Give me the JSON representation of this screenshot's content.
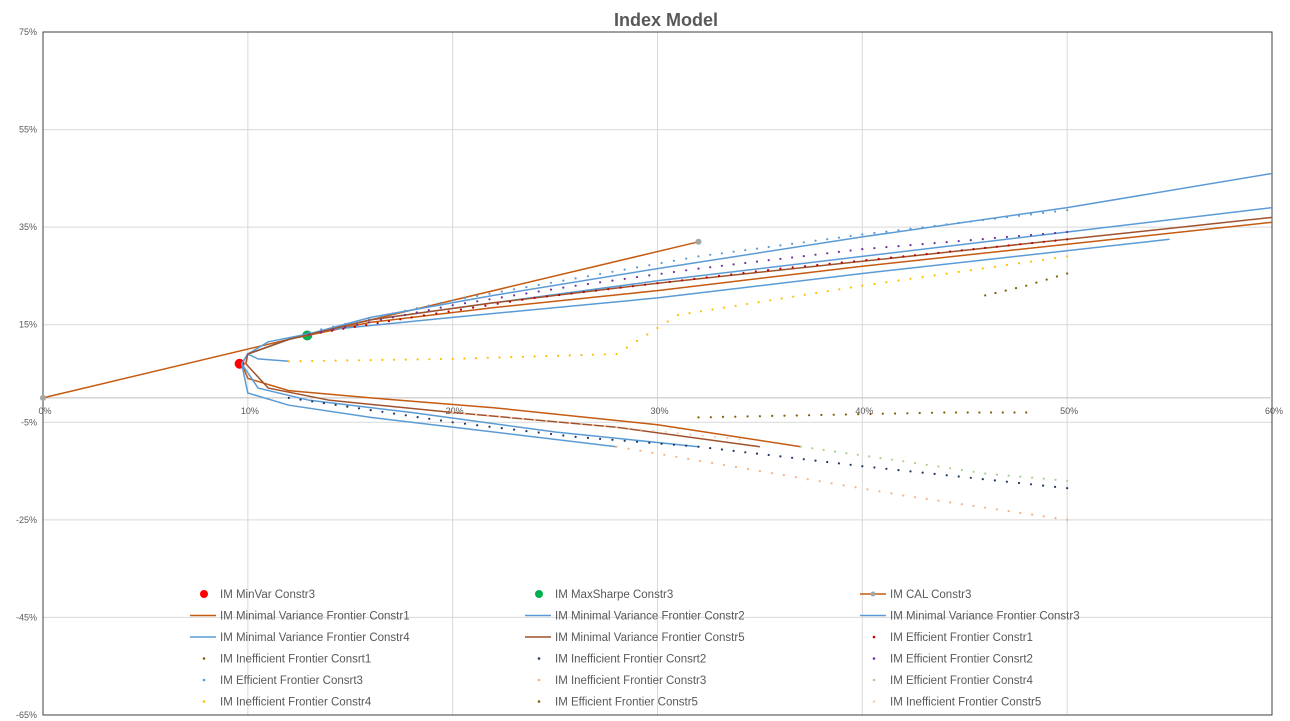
{
  "chart_data": {
    "type": "scatter",
    "title": "Index Model",
    "xlabel": "",
    "ylabel": "",
    "xlim": [
      0,
      0.6
    ],
    "ylim": [
      -0.65,
      0.75
    ],
    "x_ticks": [
      0,
      0.1,
      0.2,
      0.3,
      0.4,
      0.5,
      0.6
    ],
    "x_tick_labels": [
      "0%",
      "10%",
      "20%",
      "30%",
      "40%",
      "50%",
      "60%"
    ],
    "y_ticks": [
      0.75,
      0.55,
      0.35,
      0.15,
      -0.05,
      -0.25,
      -0.45,
      -0.65
    ],
    "y_tick_labels": [
      "75%",
      "55%",
      "35%",
      "15%",
      "-5%",
      "-25%",
      "-45%",
      "-65%"
    ],
    "x_axis_at_y": 0,
    "grid": true,
    "legend_position": "bottom",
    "series": [
      {
        "name": "IM MinVar Constr3",
        "style": "marker",
        "color": "#ff0000",
        "x": [
          0.096
        ],
        "y": [
          0.07
        ]
      },
      {
        "name": "IM MaxSharpe Constr3",
        "style": "marker",
        "color": "#00b050",
        "x": [
          0.129
        ],
        "y": [
          0.128
        ]
      },
      {
        "name": "IM CAL Constr3",
        "style": "line-marker",
        "color": "#c55a11",
        "x": [
          0,
          0.32
        ],
        "y": [
          0,
          0.32
        ]
      },
      {
        "name": "IM Minimal Variance Frontier Constr1",
        "style": "line",
        "color": "#c55a11",
        "x": [
          0.37,
          0.3,
          0.22,
          0.16,
          0.12,
          0.1,
          0.097,
          0.1,
          0.12,
          0.16,
          0.22,
          0.3,
          0.4,
          0.5,
          0.6
        ],
        "y": [
          -0.1,
          -0.055,
          -0.02,
          0.0,
          0.015,
          0.04,
          0.07,
          0.09,
          0.12,
          0.155,
          0.185,
          0.22,
          0.27,
          0.315,
          0.36
        ]
      },
      {
        "name": "IM Minimal Variance Frontier Constr2",
        "style": "line",
        "color": "#5b9bd5",
        "x": [
          0.28,
          0.22,
          0.16,
          0.12,
          0.1,
          0.097,
          0.1,
          0.12,
          0.16,
          0.22,
          0.3,
          0.4,
          0.5,
          0.6
        ],
        "y": [
          -0.1,
          -0.07,
          -0.04,
          -0.015,
          0.01,
          0.07,
          0.09,
          0.12,
          0.165,
          0.21,
          0.265,
          0.33,
          0.39,
          0.46
        ]
      },
      {
        "name": "IM Minimal Variance Frontier Constr3",
        "style": "line",
        "color": "#5b9bd5",
        "x": [
          0.32,
          0.25,
          0.18,
          0.13,
          0.105,
          0.097,
          0.1,
          0.12,
          0.16,
          0.22,
          0.3,
          0.4,
          0.5,
          0.6
        ],
        "y": [
          -0.1,
          -0.07,
          -0.03,
          -0.005,
          0.02,
          0.07,
          0.09,
          0.12,
          0.16,
          0.195,
          0.24,
          0.29,
          0.34,
          0.39
        ]
      },
      {
        "name": "IM Minimal Variance Frontier Constr4",
        "style": "line",
        "color": "#5b9bd5",
        "x": [
          0.12,
          0.105,
          0.1,
          0.11,
          0.14,
          0.2,
          0.3,
          0.4,
          0.55
        ],
        "y": [
          0.075,
          0.08,
          0.09,
          0.115,
          0.14,
          0.165,
          0.205,
          0.255,
          0.325
        ]
      },
      {
        "name": "IM Minimal Variance Frontier Constr5",
        "style": "line",
        "color": "#a0522d",
        "x": [
          0.35,
          0.28,
          0.2,
          0.14,
          0.11,
          0.099,
          0.1,
          0.12,
          0.16,
          0.22,
          0.3,
          0.4,
          0.5,
          0.6
        ],
        "y": [
          -0.1,
          -0.06,
          -0.03,
          -0.005,
          0.02,
          0.07,
          0.09,
          0.12,
          0.16,
          0.195,
          0.235,
          0.28,
          0.325,
          0.37
        ]
      },
      {
        "name": "IM Efficient Frontier Constr1",
        "style": "dots",
        "color": "#c00000",
        "x": [
          0.13,
          0.18,
          0.24,
          0.3,
          0.36,
          0.42,
          0.5
        ],
        "y": [
          0.13,
          0.165,
          0.205,
          0.235,
          0.265,
          0.29,
          0.325
        ]
      },
      {
        "name": "IM Inefficient Frontier Consrt1",
        "style": "dots",
        "color": "#7f6000",
        "x": [
          0.32,
          0.38,
          0.44,
          0.48
        ],
        "y": [
          -0.04,
          -0.035,
          -0.03,
          -0.03
        ]
      },
      {
        "name": "IM Inefficient Frontier Consrt2",
        "style": "dots",
        "color": "#1f3864",
        "x": [
          0.12,
          0.16,
          0.2,
          0.26,
          0.32,
          0.4,
          0.5
        ],
        "y": [
          0.0,
          -0.025,
          -0.05,
          -0.08,
          -0.1,
          -0.14,
          -0.185
        ]
      },
      {
        "name": "IM Efficient Frontier Consrt2",
        "style": "dots",
        "color": "#7030a0",
        "x": [
          0.13,
          0.2,
          0.26,
          0.32,
          0.4,
          0.5
        ],
        "y": [
          0.13,
          0.19,
          0.23,
          0.265,
          0.305,
          0.34
        ]
      },
      {
        "name": "IM Efficient Frontier Consrt3",
        "style": "dots",
        "color": "#5b9bd5",
        "x": [
          0.13,
          0.2,
          0.26,
          0.32,
          0.4,
          0.5
        ],
        "y": [
          0.135,
          0.2,
          0.245,
          0.29,
          0.335,
          0.385
        ]
      },
      {
        "name": "IM Inefficient Frontier Constr3",
        "style": "dots",
        "color": "#f4b183",
        "x": [
          0.28,
          0.35,
          0.42,
          0.5
        ],
        "y": [
          -0.1,
          -0.15,
          -0.2,
          -0.25
        ]
      },
      {
        "name": "IM Efficient Frontier Constr4",
        "style": "dots",
        "color": "#a9d18e",
        "x": [
          0.37,
          0.42,
          0.46,
          0.5
        ],
        "y": [
          -0.1,
          -0.13,
          -0.155,
          -0.17
        ]
      },
      {
        "name": "IM Inefficient Frontier Constr4",
        "style": "dots",
        "color": "#ffc000",
        "x": [
          0.12,
          0.2,
          0.28,
          0.31,
          0.4,
          0.5
        ],
        "y": [
          0.075,
          0.08,
          0.09,
          0.17,
          0.23,
          0.29
        ]
      },
      {
        "name": "IM Efficient Frontier Constr5",
        "style": "dots",
        "color": "#7f6000",
        "x": [
          0.46,
          0.48,
          0.5
        ],
        "y": [
          0.21,
          0.23,
          0.255
        ]
      },
      {
        "name": "IM Inefficient Frontier Constr5",
        "style": "dots",
        "color": "#f8cbad",
        "x": [
          0.2,
          0.28,
          0.34
        ],
        "y": [
          -0.03,
          -0.06,
          -0.085
        ]
      }
    ]
  }
}
